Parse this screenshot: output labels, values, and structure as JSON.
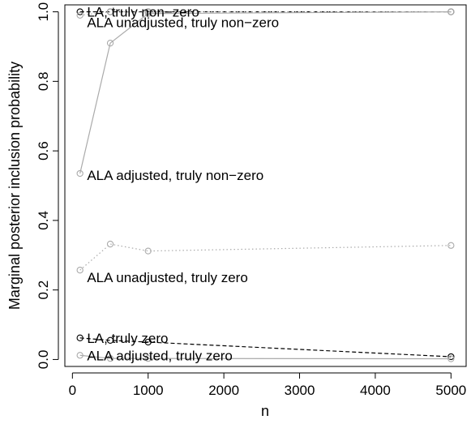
{
  "chart_data": {
    "type": "line",
    "xlabel": "n",
    "ylabel": "Marginal posterior inclusion probability",
    "xlim": [
      -100,
      5200
    ],
    "ylim": [
      -0.02,
      1.02
    ],
    "x_ticks": [
      0,
      1000,
      2000,
      3000,
      4000,
      5000
    ],
    "x_tick_labels": [
      "0",
      "1000",
      "2000",
      "3000",
      "4000",
      "5000"
    ],
    "y_ticks": [
      0.0,
      0.2,
      0.4,
      0.6,
      0.8,
      1.0
    ],
    "y_tick_labels": [
      "0.0",
      "0.2",
      "0.4",
      "0.6",
      "0.8",
      "1.0"
    ],
    "grid": false,
    "series": [
      {
        "name": "LA, truly non−zero",
        "x": [
          100,
          500,
          1000,
          5000
        ],
        "values": [
          1.0,
          1.0,
          1.0,
          1.0
        ],
        "color": "#000000",
        "linestyle": "dashed"
      },
      {
        "name": "ALA unadjusted, truly non−zero",
        "x": [
          100,
          500,
          1000,
          5000
        ],
        "values": [
          0.99,
          1.0,
          1.0,
          1.0
        ],
        "color": "#aaaaaa",
        "linestyle": "dotted"
      },
      {
        "name": "ALA adjusted, truly non−zero",
        "x": [
          100,
          500,
          1000,
          5000
        ],
        "values": [
          0.535,
          0.91,
          0.995,
          1.0
        ],
        "color": "#aaaaaa",
        "linestyle": "solid"
      },
      {
        "name": "ALA unadjusted, truly zero",
        "x": [
          100,
          500,
          1000,
          5000
        ],
        "values": [
          0.257,
          0.332,
          0.312,
          0.328
        ],
        "color": "#aaaaaa",
        "linestyle": "dotted"
      },
      {
        "name": "LA, truly zero",
        "x": [
          100,
          500,
          1000,
          5000
        ],
        "values": [
          0.062,
          0.055,
          0.05,
          0.008
        ],
        "color": "#000000",
        "linestyle": "dashed"
      },
      {
        "name": "ALA adjusted, truly zero",
        "x": [
          100,
          500,
          1000,
          5000
        ],
        "values": [
          0.012,
          0.003,
          0.003,
          0.002
        ],
        "color": "#aaaaaa",
        "linestyle": "solid"
      }
    ],
    "annotations": [
      {
        "text": "LA, truly non−zero",
        "x": 150,
        "y": 1.0
      },
      {
        "text": "ALA unadjusted, truly non−zero",
        "x": 150,
        "y": 0.97
      },
      {
        "text": "ALA adjusted, truly non−zero",
        "x": 150,
        "y": 0.53
      },
      {
        "text": "ALA unadjusted, truly zero",
        "x": 150,
        "y": 0.237
      },
      {
        "text": "LA, truly zero",
        "x": 150,
        "y": 0.062
      },
      {
        "text": "ALA adjusted, truly zero",
        "x": 150,
        "y": 0.012
      }
    ]
  }
}
